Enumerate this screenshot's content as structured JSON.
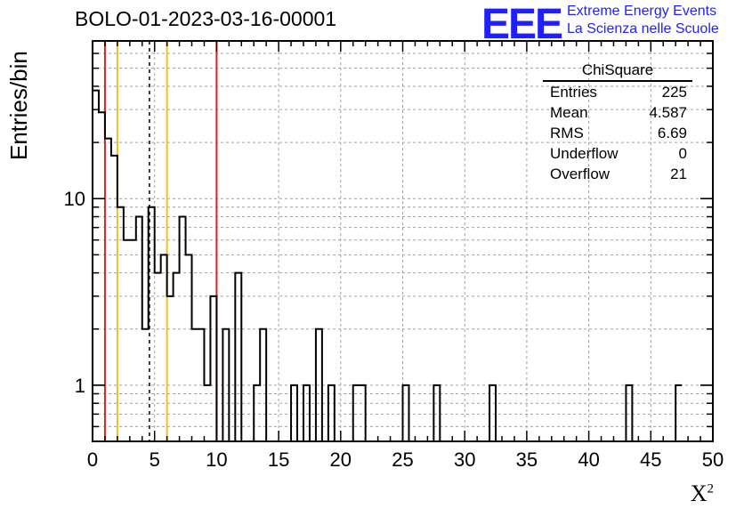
{
  "title": "BOLO-01-2023-03-16-00001",
  "ylabel": "Entries/bin",
  "xlabel_base": "X",
  "xlabel_sup": "2",
  "logo": {
    "mark": "EEE",
    "line1": "Extreme Energy Events",
    "line2": "La Scienza nelle Scuole",
    "color": "#1f1fff"
  },
  "stats": {
    "title": "ChiSquare",
    "rows": [
      {
        "label": "Entries",
        "value": "225"
      },
      {
        "label": "Mean",
        "value": "4.587"
      },
      {
        "label": "RMS",
        "value": "6.69"
      },
      {
        "label": "Underflow",
        "value": "0"
      },
      {
        "label": "Overflow",
        "value": "21"
      }
    ]
  },
  "chart_data": {
    "type": "histogram",
    "title": "BOLO-01-2023-03-16-00001",
    "xlabel": "X²",
    "ylabel": "Entries/bin",
    "xlim": [
      0,
      50
    ],
    "ylim": [
      0.5,
      70
    ],
    "ylog": true,
    "grid": true,
    "bin_width": 0.5,
    "x_ticks": [
      "0",
      "5",
      "10",
      "15",
      "20",
      "25",
      "30",
      "35",
      "40",
      "45",
      "50"
    ],
    "y_ticks": [
      "1",
      "10"
    ],
    "bin_contents": [
      38,
      29,
      21,
      17,
      9,
      6,
      6,
      8,
      2,
      9,
      4,
      5,
      3,
      4,
      8,
      5,
      2,
      2,
      1,
      3,
      0,
      2,
      0,
      4,
      0,
      0,
      1,
      2,
      0,
      0,
      0,
      0,
      1,
      0,
      1,
      0,
      2,
      0,
      1,
      0,
      0,
      0,
      1,
      1,
      0,
      0,
      0,
      0,
      0,
      0,
      1,
      0,
      0,
      0,
      0,
      1,
      0,
      0,
      0,
      0,
      0,
      0,
      0,
      0,
      1,
      0,
      0,
      0,
      0,
      0,
      0,
      0,
      0,
      0,
      0,
      0,
      0,
      0,
      0,
      0,
      0,
      0,
      0,
      0,
      0,
      0,
      1,
      0,
      0,
      0,
      0,
      0,
      0,
      0,
      1
    ],
    "vertical_lines": [
      {
        "x": 1.0,
        "color": "#e02020",
        "style": "solid"
      },
      {
        "x": 2.0,
        "color": "#f0c020",
        "style": "solid"
      },
      {
        "x": 4.587,
        "color": "#000000",
        "style": "dashed"
      },
      {
        "x": 6.0,
        "color": "#f0c020",
        "style": "solid"
      },
      {
        "x": 10.0,
        "color": "#e02020",
        "style": "solid"
      }
    ],
    "line_color": "#000000",
    "grid_color": "#a0a0a0"
  }
}
